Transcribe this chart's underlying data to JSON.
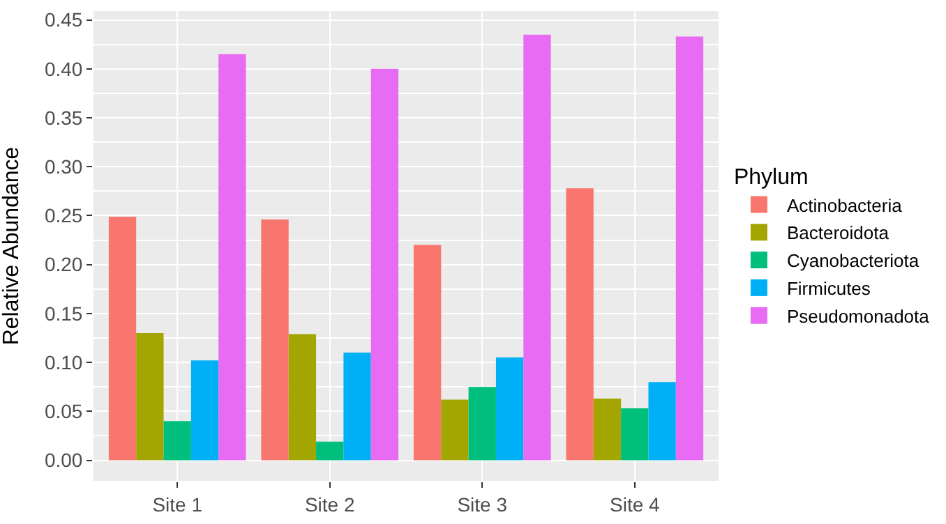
{
  "chart_data": {
    "type": "bar",
    "ylabel": "Relative Abundance",
    "legend_title": "Phylum",
    "categories": [
      "Site 1",
      "Site 2",
      "Site 3",
      "Site 4"
    ],
    "series": [
      {
        "name": "Actinobacteria",
        "color": "#f8766d",
        "values": [
          0.249,
          0.246,
          0.22,
          0.278
        ]
      },
      {
        "name": "Bacteroidota",
        "color": "#a3a500",
        "values": [
          0.13,
          0.129,
          0.062,
          0.063
        ]
      },
      {
        "name": "Cyanobacteriota",
        "color": "#00bf7d",
        "values": [
          0.04,
          0.019,
          0.075,
          0.053
        ]
      },
      {
        "name": "Firmicutes",
        "color": "#00b0f6",
        "values": [
          0.102,
          0.11,
          0.105,
          0.08
        ]
      },
      {
        "name": "Pseudomonadota",
        "color": "#e76bf3",
        "values": [
          0.415,
          0.4,
          0.435,
          0.433
        ]
      }
    ],
    "ylim": [
      -0.021,
      0.459
    ],
    "yticks": [
      {
        "value": 0,
        "label": "0.00"
      },
      {
        "value": 0.05,
        "label": "0.05"
      },
      {
        "value": 0.1,
        "label": "0.10"
      },
      {
        "value": 0.15,
        "label": "0.15"
      },
      {
        "value": 0.2,
        "label": "0.20"
      },
      {
        "value": 0.25,
        "label": "0.25"
      },
      {
        "value": 0.3,
        "label": "0.30"
      },
      {
        "value": 0.35,
        "label": "0.35"
      },
      {
        "value": 0.4,
        "label": "0.40"
      },
      {
        "value": 0.45,
        "label": "0.45"
      }
    ],
    "grid": true,
    "legend": "right"
  }
}
